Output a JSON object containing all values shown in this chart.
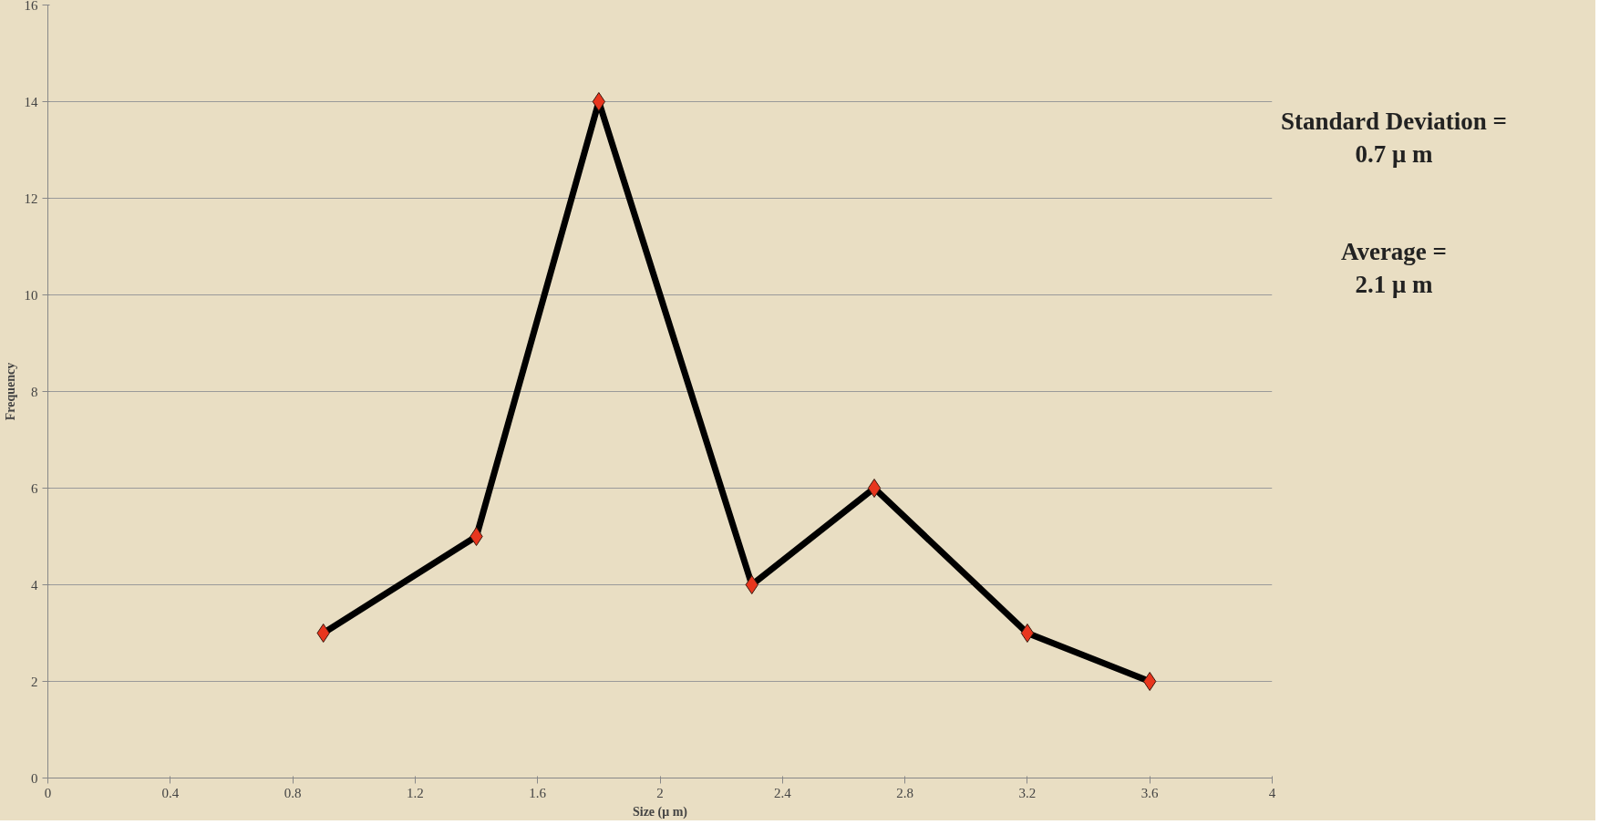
{
  "chart_data": {
    "type": "line",
    "xlabel": "Size (μ m)",
    "ylabel": "Frequency",
    "x": [
      0.9,
      1.4,
      1.8,
      2.3,
      2.7,
      3.2,
      3.6
    ],
    "series": [
      {
        "color": "#000000",
        "marker": "none",
        "values": [
          3,
          5,
          14,
          4,
          6,
          3,
          2
        ]
      },
      {
        "type": "scatter",
        "color": "#e8361e",
        "values": [
          3,
          5,
          14,
          4,
          6,
          3,
          2
        ]
      }
    ],
    "marker": "diamond",
    "line_style": "solid",
    "xlim": [
      0,
      4
    ],
    "xticks": [
      0,
      0.4,
      0.8,
      1.2,
      1.6,
      2,
      2.4,
      2.8,
      3.2,
      3.6,
      4
    ],
    "ylim": [
      0,
      16
    ],
    "yticks": [
      0,
      2,
      4,
      6,
      8,
      10,
      12,
      14,
      16
    ],
    "grid": "y",
    "annotations": [
      "Standard Deviation =\n0.7 μ m",
      "Average =\n2.1  μ m"
    ]
  }
}
